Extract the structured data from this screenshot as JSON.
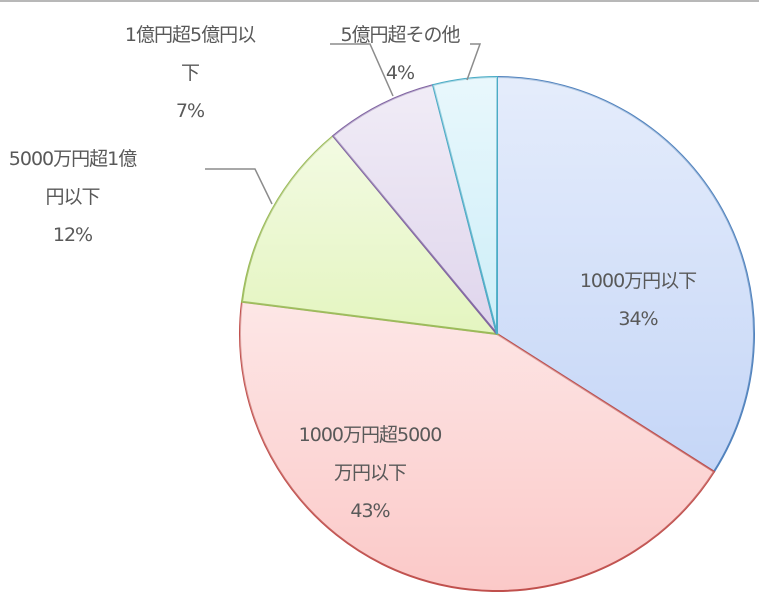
{
  "chart_data": {
    "type": "pie",
    "start": "12 o'clock, clockwise",
    "slices": [
      {
        "label_lines": [
          "1000万円以下"
        ],
        "percent_label": "34%",
        "value": 34,
        "color": "#c5d6f7",
        "edge": "#4f81bd"
      },
      {
        "label_lines": [
          "1000万円超5000",
          "万円以下"
        ],
        "percent_label": "43%",
        "value": 43,
        "color": "#fbc9c8",
        "edge": "#c0504d"
      },
      {
        "label_lines": [
          "5000万円超1億",
          "円以下"
        ],
        "percent_label": "12%",
        "value": 12,
        "color": "#e4f5c0",
        "edge": "#9bbb59"
      },
      {
        "label_lines": [
          "1億円超5億円以",
          "下"
        ],
        "percent_label": "7%",
        "value": 7,
        "color": "#dfd5ec",
        "edge": "#8064a2"
      },
      {
        "label_lines": [
          "5億円超その他"
        ],
        "percent_label": "4%",
        "value": 4,
        "color": "#cdeef8",
        "edge": "#4bacc6"
      }
    ],
    "legend": "none (data labels with leader lines)"
  }
}
